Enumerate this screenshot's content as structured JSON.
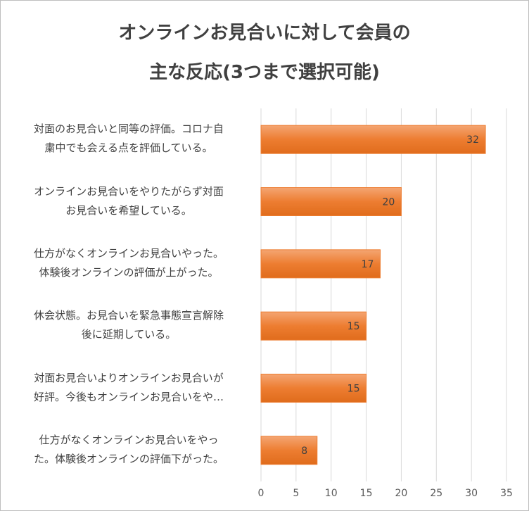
{
  "chart_data": {
    "type": "bar",
    "orientation": "horizontal",
    "title": "オンラインお見合いに対して会員の\n主な反応(3つまで選択可能)",
    "categories": [
      "対面のお見合いと同等の評価。コロナ自\n粛中でも会える点を評価している。",
      "オンラインお見合いをやりたがらず対面\nお見合いを希望している。",
      "仕方がなくオンラインお見合いやった。\n体験後オンラインの評価が上がった。",
      "休会状態。お見合いを緊急事態宣言解除\n後に延期している。",
      "対面お見合いよりオンラインお見合いが\n好評。今後もオンラインお見合いをや…",
      "仕方がなくオンラインお見合いをやっ\nた。体験後オンラインの評価下がった。"
    ],
    "values": [
      32,
      20,
      17,
      15,
      15,
      8
    ],
    "color": "#ed7d31",
    "xlim": [
      0,
      35
    ],
    "xticks": [
      0,
      5,
      10,
      15,
      20,
      25,
      30,
      35
    ],
    "grid": true
  }
}
